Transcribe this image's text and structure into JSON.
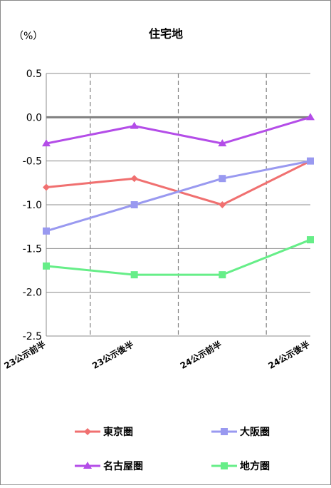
{
  "chart_data": {
    "type": "line",
    "title": "住宅地",
    "ylabel": "（%）",
    "xlabel": "",
    "categories": [
      "23公示前半",
      "23公示後半",
      "24公示前半",
      "24公示後半"
    ],
    "ylim": [
      -2.5,
      0.5
    ],
    "yticks": [
      0.5,
      0.0,
      -0.5,
      -1.0,
      -1.5,
      -2.0,
      -2.5
    ],
    "ytick_labels": [
      "0.5",
      "0.0",
      "-0.5",
      "-1.0",
      "-1.5",
      "-2.0",
      "-2.5"
    ],
    "grid": true,
    "zero_line": true,
    "legend_position": "bottom",
    "series": [
      {
        "name": "東京圏",
        "values": [
          -0.8,
          -0.7,
          -1.0,
          -0.5
        ],
        "color": "#f07070",
        "marker": "diamond"
      },
      {
        "name": "大阪圏",
        "values": [
          -1.3,
          -1.0,
          -0.7,
          -0.5
        ],
        "color": "#9999f0",
        "marker": "square"
      },
      {
        "name": "名古屋圏",
        "values": [
          -0.3,
          -0.1,
          -0.3,
          0.0
        ],
        "color": "#b44de8",
        "marker": "triangle"
      },
      {
        "name": "地方圏",
        "values": [
          -1.7,
          -1.8,
          -1.8,
          -1.4
        ],
        "color": "#66ee88",
        "marker": "square"
      }
    ]
  }
}
